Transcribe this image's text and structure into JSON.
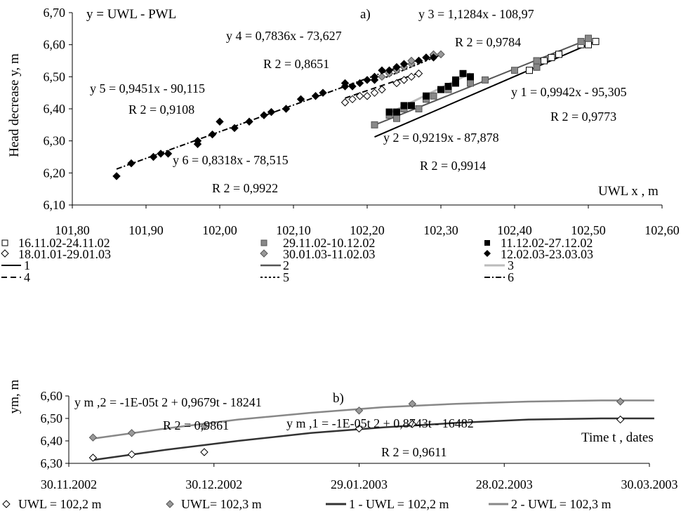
{
  "chart_data": [
    {
      "type": "scatter",
      "panel_label": "a)",
      "formula_label": "y = UWL - PWL",
      "ylabel": "Head decrease y, m",
      "xlabel": "UWL x , m",
      "xlim": [
        101.8,
        102.6
      ],
      "ylim": [
        6.1,
        6.7
      ],
      "x_ticks": [
        "101,80",
        "101,90",
        "102,00",
        "102,10",
        "102,20",
        "102,30",
        "102,40",
        "102,50",
        "102,60"
      ],
      "y_ticks": [
        "6,10",
        "6,20",
        "6,30",
        "6,40",
        "6,50",
        "6,60",
        "6,70"
      ],
      "grid": false,
      "legend_position": "bottom",
      "series": [
        {
          "name": "16.11.02-24.11.02",
          "marker": "square-open",
          "color": "#ffffff",
          "points": [
            [
              102.42,
              6.52
            ],
            [
              102.43,
              6.53
            ],
            [
              102.44,
              6.55
            ],
            [
              102.45,
              6.56
            ],
            [
              102.46,
              6.57
            ],
            [
              102.49,
              6.6
            ],
            [
              102.5,
              6.6
            ],
            [
              102.51,
              6.61
            ]
          ]
        },
        {
          "name": "29.11.02-10.12.02",
          "marker": "square",
          "color": "#888888",
          "points": [
            [
              102.21,
              6.35
            ],
            [
              102.23,
              6.38
            ],
            [
              102.24,
              6.37
            ],
            [
              102.25,
              6.4
            ],
            [
              102.27,
              6.4
            ],
            [
              102.28,
              6.43
            ],
            [
              102.29,
              6.44
            ],
            [
              102.31,
              6.46
            ],
            [
              102.34,
              6.48
            ],
            [
              102.36,
              6.49
            ],
            [
              102.4,
              6.52
            ],
            [
              102.43,
              6.53
            ],
            [
              102.43,
              6.55
            ],
            [
              102.49,
              6.61
            ],
            [
              102.5,
              6.62
            ]
          ]
        },
        {
          "name": "11.12.02-27.12.02",
          "marker": "square",
          "color": "#000000",
          "points": [
            [
              102.23,
              6.39
            ],
            [
              102.24,
              6.39
            ],
            [
              102.25,
              6.41
            ],
            [
              102.26,
              6.41
            ],
            [
              102.28,
              6.44
            ],
            [
              102.3,
              6.46
            ],
            [
              102.31,
              6.47
            ],
            [
              102.32,
              6.49
            ],
            [
              102.32,
              6.48
            ],
            [
              102.33,
              6.51
            ],
            [
              102.34,
              6.5
            ]
          ]
        },
        {
          "name": "18.01.01-29.01.03",
          "marker": "diamond-open",
          "color": "#ffffff",
          "points": [
            [
              102.17,
              6.42
            ],
            [
              102.18,
              6.43
            ],
            [
              102.19,
              6.44
            ],
            [
              102.2,
              6.44
            ],
            [
              102.21,
              6.45
            ],
            [
              102.22,
              6.46
            ],
            [
              102.24,
              6.48
            ],
            [
              102.25,
              6.49
            ],
            [
              102.26,
              6.5
            ],
            [
              102.27,
              6.51
            ]
          ]
        },
        {
          "name": "30.01.03-11.02.03",
          "marker": "diamond",
          "color": "#999999",
          "points": [
            [
              102.22,
              6.5
            ],
            [
              102.23,
              6.51
            ],
            [
              102.24,
              6.52
            ],
            [
              102.24,
              6.53
            ],
            [
              102.25,
              6.53
            ],
            [
              102.26,
              6.54
            ],
            [
              102.26,
              6.55
            ],
            [
              102.27,
              6.55
            ],
            [
              102.28,
              6.56
            ],
            [
              102.29,
              6.57
            ],
            [
              102.3,
              6.57
            ]
          ]
        },
        {
          "name": "12.02.03-23.03.03",
          "marker": "diamond",
          "color": "#000000",
          "points": [
            [
              101.86,
              6.19
            ],
            [
              101.88,
              6.23
            ],
            [
              101.91,
              6.25
            ],
            [
              101.92,
              6.26
            ],
            [
              101.93,
              6.26
            ],
            [
              101.97,
              6.29
            ],
            [
              101.97,
              6.3
            ],
            [
              101.99,
              6.32
            ],
            [
              102.0,
              6.36
            ],
            [
              102.02,
              6.34
            ],
            [
              102.04,
              6.36
            ],
            [
              102.06,
              6.38
            ],
            [
              102.07,
              6.39
            ],
            [
              102.09,
              6.4
            ],
            [
              102.11,
              6.43
            ],
            [
              102.13,
              6.44
            ],
            [
              102.14,
              6.45
            ],
            [
              102.17,
              6.47
            ],
            [
              102.17,
              6.48
            ],
            [
              102.18,
              6.47
            ],
            [
              102.19,
              6.48
            ],
            [
              102.2,
              6.49
            ],
            [
              102.21,
              6.49
            ],
            [
              102.21,
              6.5
            ],
            [
              102.22,
              6.52
            ],
            [
              102.23,
              6.52
            ],
            [
              102.24,
              6.53
            ],
            [
              102.25,
              6.54
            ],
            [
              102.27,
              6.55
            ],
            [
              102.28,
              6.56
            ],
            [
              102.29,
              6.56
            ]
          ]
        }
      ],
      "trendlines": [
        {
          "name": "1",
          "style": "solid",
          "color": "#000000",
          "width": 2,
          "slope": 0.9942,
          "intercept": -95.305,
          "x_range": [
            102.21,
            102.51
          ]
        },
        {
          "name": "2",
          "style": "solid",
          "color": "#555555",
          "width": 2,
          "slope": 0.9219,
          "intercept": -87.878,
          "x_range": [
            102.21,
            102.5
          ]
        },
        {
          "name": "3",
          "style": "solid",
          "color": "#bbbbbb",
          "width": 3,
          "slope": 1.1284,
          "intercept": -108.97,
          "x_range": [
            102.23,
            102.34
          ]
        },
        {
          "name": "4",
          "style": "dash",
          "color": "#000000",
          "width": 2,
          "slope": 0.7836,
          "intercept": -73.627,
          "x_range": [
            102.17,
            102.27
          ]
        },
        {
          "name": "5",
          "style": "dot",
          "color": "#000000",
          "width": 2,
          "slope": 0.9451,
          "intercept": -90.115,
          "x_range": [
            102.22,
            102.3
          ]
        },
        {
          "name": "6",
          "style": "dashdot",
          "color": "#000000",
          "width": 2,
          "slope": 0.8318,
          "intercept": -78.515,
          "x_range": [
            101.86,
            102.29
          ]
        }
      ],
      "annotations": [
        {
          "eq": "y 3 = 1,1284x - 108,97",
          "r2": "R 2 = 0,9784"
        },
        {
          "eq": "y 4 = 0,7836x - 73,627",
          "r2": "R 2 = 0,8651"
        },
        {
          "eq": "y 5 = 0,9451x - 90,115",
          "r2": "R 2 = 0,9108"
        },
        {
          "eq": "y 1 = 0,9942x - 95,305",
          "r2": "R 2 = 0,9773"
        },
        {
          "eq": "y 2 = 0,9219x - 87,878",
          "r2": "R 2 = 0,9914"
        },
        {
          "eq": "y 6 = 0,8318x - 78,515",
          "r2": "R 2 = 0,9922"
        }
      ],
      "legend": {
        "markers": [
          "16.11.02-24.11.02",
          "29.11.02-10.12.02",
          "11.12.02-27.12.02",
          "18.01.01-29.01.03",
          "30.01.03-11.02.03",
          "12.02.03-23.03.03"
        ],
        "lines": [
          "1",
          "2",
          "3",
          "4",
          "5",
          "6"
        ]
      }
    },
    {
      "type": "scatter",
      "panel_label": "b)",
      "ylabel": "ym, m",
      "xlabel": "Time t , dates",
      "xlim": [
        "2002-11-30",
        "2003-03-30"
      ],
      "ylim": [
        6.3,
        6.6
      ],
      "x_ticks": [
        "30.11.2002",
        "30.12.2002",
        "29.01.2003",
        "28.02.2003",
        "30.03.2003"
      ],
      "y_ticks": [
        "6,30",
        "6,40",
        "6,50",
        "6,60"
      ],
      "grid": false,
      "legend_position": "bottom",
      "series": [
        {
          "name": "UWL = 102,2 m",
          "marker": "diamond-open",
          "color": "#ffffff",
          "points": [
            [
              "2002-12-05",
              6.325
            ],
            [
              "2002-12-13",
              6.34
            ],
            [
              "2002-12-28",
              6.35
            ],
            [
              "2003-01-29",
              6.455
            ],
            [
              "2003-02-09",
              6.475
            ],
            [
              "2003-03-24",
              6.495
            ]
          ]
        },
        {
          "name": "UWL= 102,3 m",
          "marker": "diamond",
          "color": "#999999",
          "points": [
            [
              "2002-12-05",
              6.415
            ],
            [
              "2002-12-13",
              6.435
            ],
            [
              "2002-12-28",
              6.465
            ],
            [
              "2003-01-29",
              6.535
            ],
            [
              "2003-02-09",
              6.565
            ],
            [
              "2003-03-24",
              6.575
            ]
          ]
        }
      ],
      "curves": [
        {
          "name": "1 - UWL = 102,2 m",
          "color": "#333333",
          "points": [
            [
              "2002-12-05",
              6.315
            ],
            [
              "2002-12-20",
              6.36
            ],
            [
              "2003-01-04",
              6.4
            ],
            [
              "2003-01-19",
              6.435
            ],
            [
              "2003-02-03",
              6.46
            ],
            [
              "2003-02-18",
              6.48
            ],
            [
              "2003-03-05",
              6.495
            ],
            [
              "2003-03-20",
              6.5
            ],
            [
              "2003-03-31",
              6.5
            ]
          ]
        },
        {
          "name": "2 - UWL = 102,3 m",
          "color": "#888888",
          "points": [
            [
              "2002-12-05",
              6.41
            ],
            [
              "2002-12-20",
              6.455
            ],
            [
              "2003-01-04",
              6.495
            ],
            [
              "2003-01-19",
              6.525
            ],
            [
              "2003-02-03",
              6.55
            ],
            [
              "2003-02-18",
              6.565
            ],
            [
              "2003-03-05",
              6.575
            ],
            [
              "2003-03-20",
              6.58
            ],
            [
              "2003-03-31",
              6.58
            ]
          ]
        }
      ],
      "annotations": [
        {
          "eq": "y m ,2 = -1E-05t 2 + 0,9679t - 18241",
          "r2": "R 2 = 0,9861"
        },
        {
          "eq": "y m ,1 = -1E-05t 2 + 0,8743t - 16482",
          "r2": "R 2 = 0,9611"
        }
      ],
      "legend": [
        "UWL = 102,2 m",
        "UWL= 102,3 m",
        "1 - UWL = 102,2 m",
        "2 - UWL = 102,3 m"
      ]
    }
  ]
}
